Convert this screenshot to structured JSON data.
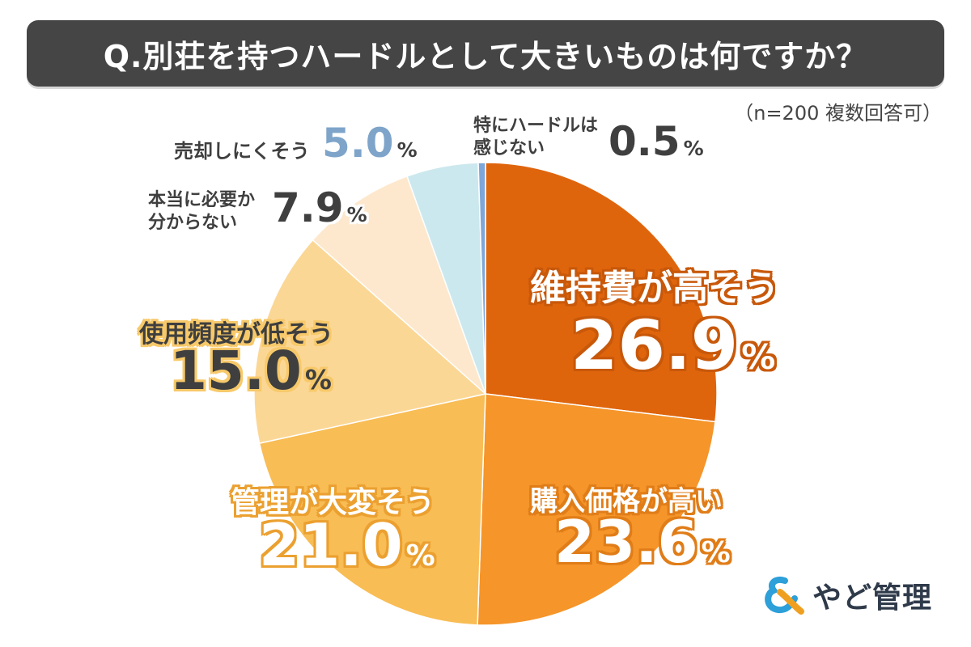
{
  "title": "Q.別荘を持つハードルとして大きいものは何ですか？",
  "note": "（n=200 複数回答可）",
  "brand": "やど管理",
  "colors": {
    "title_bg": "#454545",
    "slices": [
      "#df650d",
      "#f5952a",
      "#f8bd55",
      "#fbd796",
      "#fde8cd",
      "#cbe8ee",
      "#7ea6d8"
    ]
  },
  "chart_data": {
    "type": "pie",
    "title": "Q.別荘を持つハードルとして大きいものは何ですか？",
    "unit": "%",
    "slices": [
      {
        "label": "維持費が高そう",
        "value": 26.9,
        "display": "26.9"
      },
      {
        "label": "購入価格が高い",
        "value": 23.6,
        "display": "23.6"
      },
      {
        "label": "管理が大変そう",
        "value": 21.0,
        "display": "21.0"
      },
      {
        "label": "使用頻度が低そう",
        "value": 15.0,
        "display": "15.0"
      },
      {
        "label": "本当に必要か分からない",
        "value": 7.9,
        "display": "7.9"
      },
      {
        "label": "売却しにくそう",
        "value": 5.0,
        "display": "5.0"
      },
      {
        "label": "特にハードルは感じない",
        "value": 0.5,
        "display": "0.5"
      }
    ]
  },
  "labels": {
    "s0_name": "維持費が高そう",
    "s1_name": "購入価格が高い",
    "s2_name": "管理が大変そう",
    "s3_name": "使用頻度が低そう",
    "s4_name_line1": "本当に必要か",
    "s4_name_line2": "分からない",
    "s5_name": "売却しにくそう",
    "s6_name_line1": "特にハードルは",
    "s6_name_line2": "感じない"
  }
}
